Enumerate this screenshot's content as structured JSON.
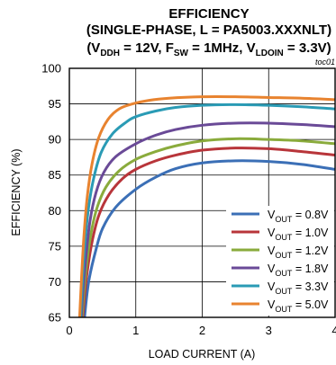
{
  "chart_data": {
    "type": "line",
    "title": "EFFICIENCY",
    "subtitle_1": "(SINGLE-PHASE, L = PA5003.XXXNLT)",
    "subtitle_2": {
      "p1": "(V",
      "s1": "DDH",
      "p2": " = 12V, F",
      "s2": "SW",
      "p3": " = 1MHz, V",
      "s3": "LDOIN",
      "p4": " = 3.3V)"
    },
    "corner_note": "toc01",
    "xlabel": "LOAD CURRENT (A)",
    "ylabel": "EFFICIENCY (%)",
    "xlim": [
      0,
      4
    ],
    "ylim": [
      65,
      100
    ],
    "x_ticks": [
      "0",
      "1",
      "2",
      "3",
      "4"
    ],
    "y_ticks": [
      "65",
      "70",
      "75",
      "80",
      "85",
      "90",
      "95",
      "100"
    ],
    "grid": true,
    "legend_position": "bottom-right",
    "series": [
      {
        "label_main": "V",
        "label_sub": "OUT",
        "label_rest": " = 0.8V",
        "color": "#3b6fb6",
        "x": [
          0.2,
          0.25,
          0.3,
          0.4,
          0.5,
          0.7,
          1.0,
          1.3,
          1.6,
          2.0,
          2.5,
          3.0,
          3.5,
          4.0
        ],
        "y": [
          62,
          67,
          70.5,
          74.5,
          77.5,
          80.5,
          83,
          84.7,
          85.9,
          86.7,
          87.0,
          86.9,
          86.5,
          85.8
        ]
      },
      {
        "label_main": "V",
        "label_sub": "OUT",
        "label_rest": " = 1.0V",
        "color": "#b8353a",
        "x": [
          0.18,
          0.22,
          0.27,
          0.35,
          0.45,
          0.6,
          0.8,
          1.0,
          1.3,
          1.6,
          2.0,
          2.5,
          3.0,
          3.5,
          4.0
        ],
        "y": [
          62,
          67,
          71.5,
          76,
          79.5,
          82.3,
          84.5,
          85.8,
          87.0,
          87.8,
          88.5,
          88.8,
          88.7,
          88.3,
          87.8
        ]
      },
      {
        "label_main": "V",
        "label_sub": "OUT",
        "label_rest": " = 1.2V",
        "color": "#8aab3c",
        "x": [
          0.17,
          0.21,
          0.26,
          0.33,
          0.42,
          0.55,
          0.75,
          1.0,
          1.3,
          1.6,
          2.0,
          2.5,
          3.0,
          3.5,
          4.0
        ],
        "y": [
          62,
          67.5,
          72.5,
          77,
          80.5,
          83.3,
          85.6,
          87.2,
          88.3,
          89.1,
          89.8,
          90.1,
          90.0,
          89.8,
          89.4
        ]
      },
      {
        "label_main": "V",
        "label_sub": "OUT",
        "label_rest": " = 1.8V",
        "color": "#6a4a97",
        "x": [
          0.16,
          0.2,
          0.25,
          0.31,
          0.4,
          0.52,
          0.7,
          1.0,
          1.3,
          1.6,
          2.0,
          2.5,
          3.0,
          3.5,
          4.0
        ],
        "y": [
          62,
          68,
          73.5,
          78.5,
          82.5,
          85.4,
          87.6,
          89.4,
          90.6,
          91.4,
          92.0,
          92.3,
          92.3,
          92.1,
          91.8
        ]
      },
      {
        "label_main": "V",
        "label_sub": "OUT",
        "label_rest": " = 3.3V",
        "color": "#2a9bb5",
        "x": [
          0.15,
          0.19,
          0.23,
          0.29,
          0.37,
          0.48,
          0.65,
          0.85,
          1.0,
          1.3,
          1.6,
          2.0,
          2.5,
          3.0,
          3.5,
          4.0
        ],
        "y": [
          62,
          69,
          75,
          80.5,
          84.7,
          88.2,
          90.8,
          92.4,
          93.2,
          94.0,
          94.5,
          94.8,
          94.9,
          94.8,
          94.6,
          94.3
        ]
      },
      {
        "label_main": "V",
        "label_sub": "OUT",
        "label_rest": " = 5.0V",
        "color": "#e8832f",
        "x": [
          0.14,
          0.18,
          0.22,
          0.27,
          0.34,
          0.44,
          0.58,
          0.75,
          0.95,
          1.2,
          1.5,
          2.0,
          2.5,
          3.0,
          3.5,
          4.0
        ],
        "y": [
          62,
          70,
          76.5,
          82,
          86.5,
          90.2,
          92.8,
          94.3,
          95.0,
          95.5,
          95.8,
          96.0,
          96.0,
          95.9,
          95.8,
          95.6
        ]
      }
    ]
  }
}
